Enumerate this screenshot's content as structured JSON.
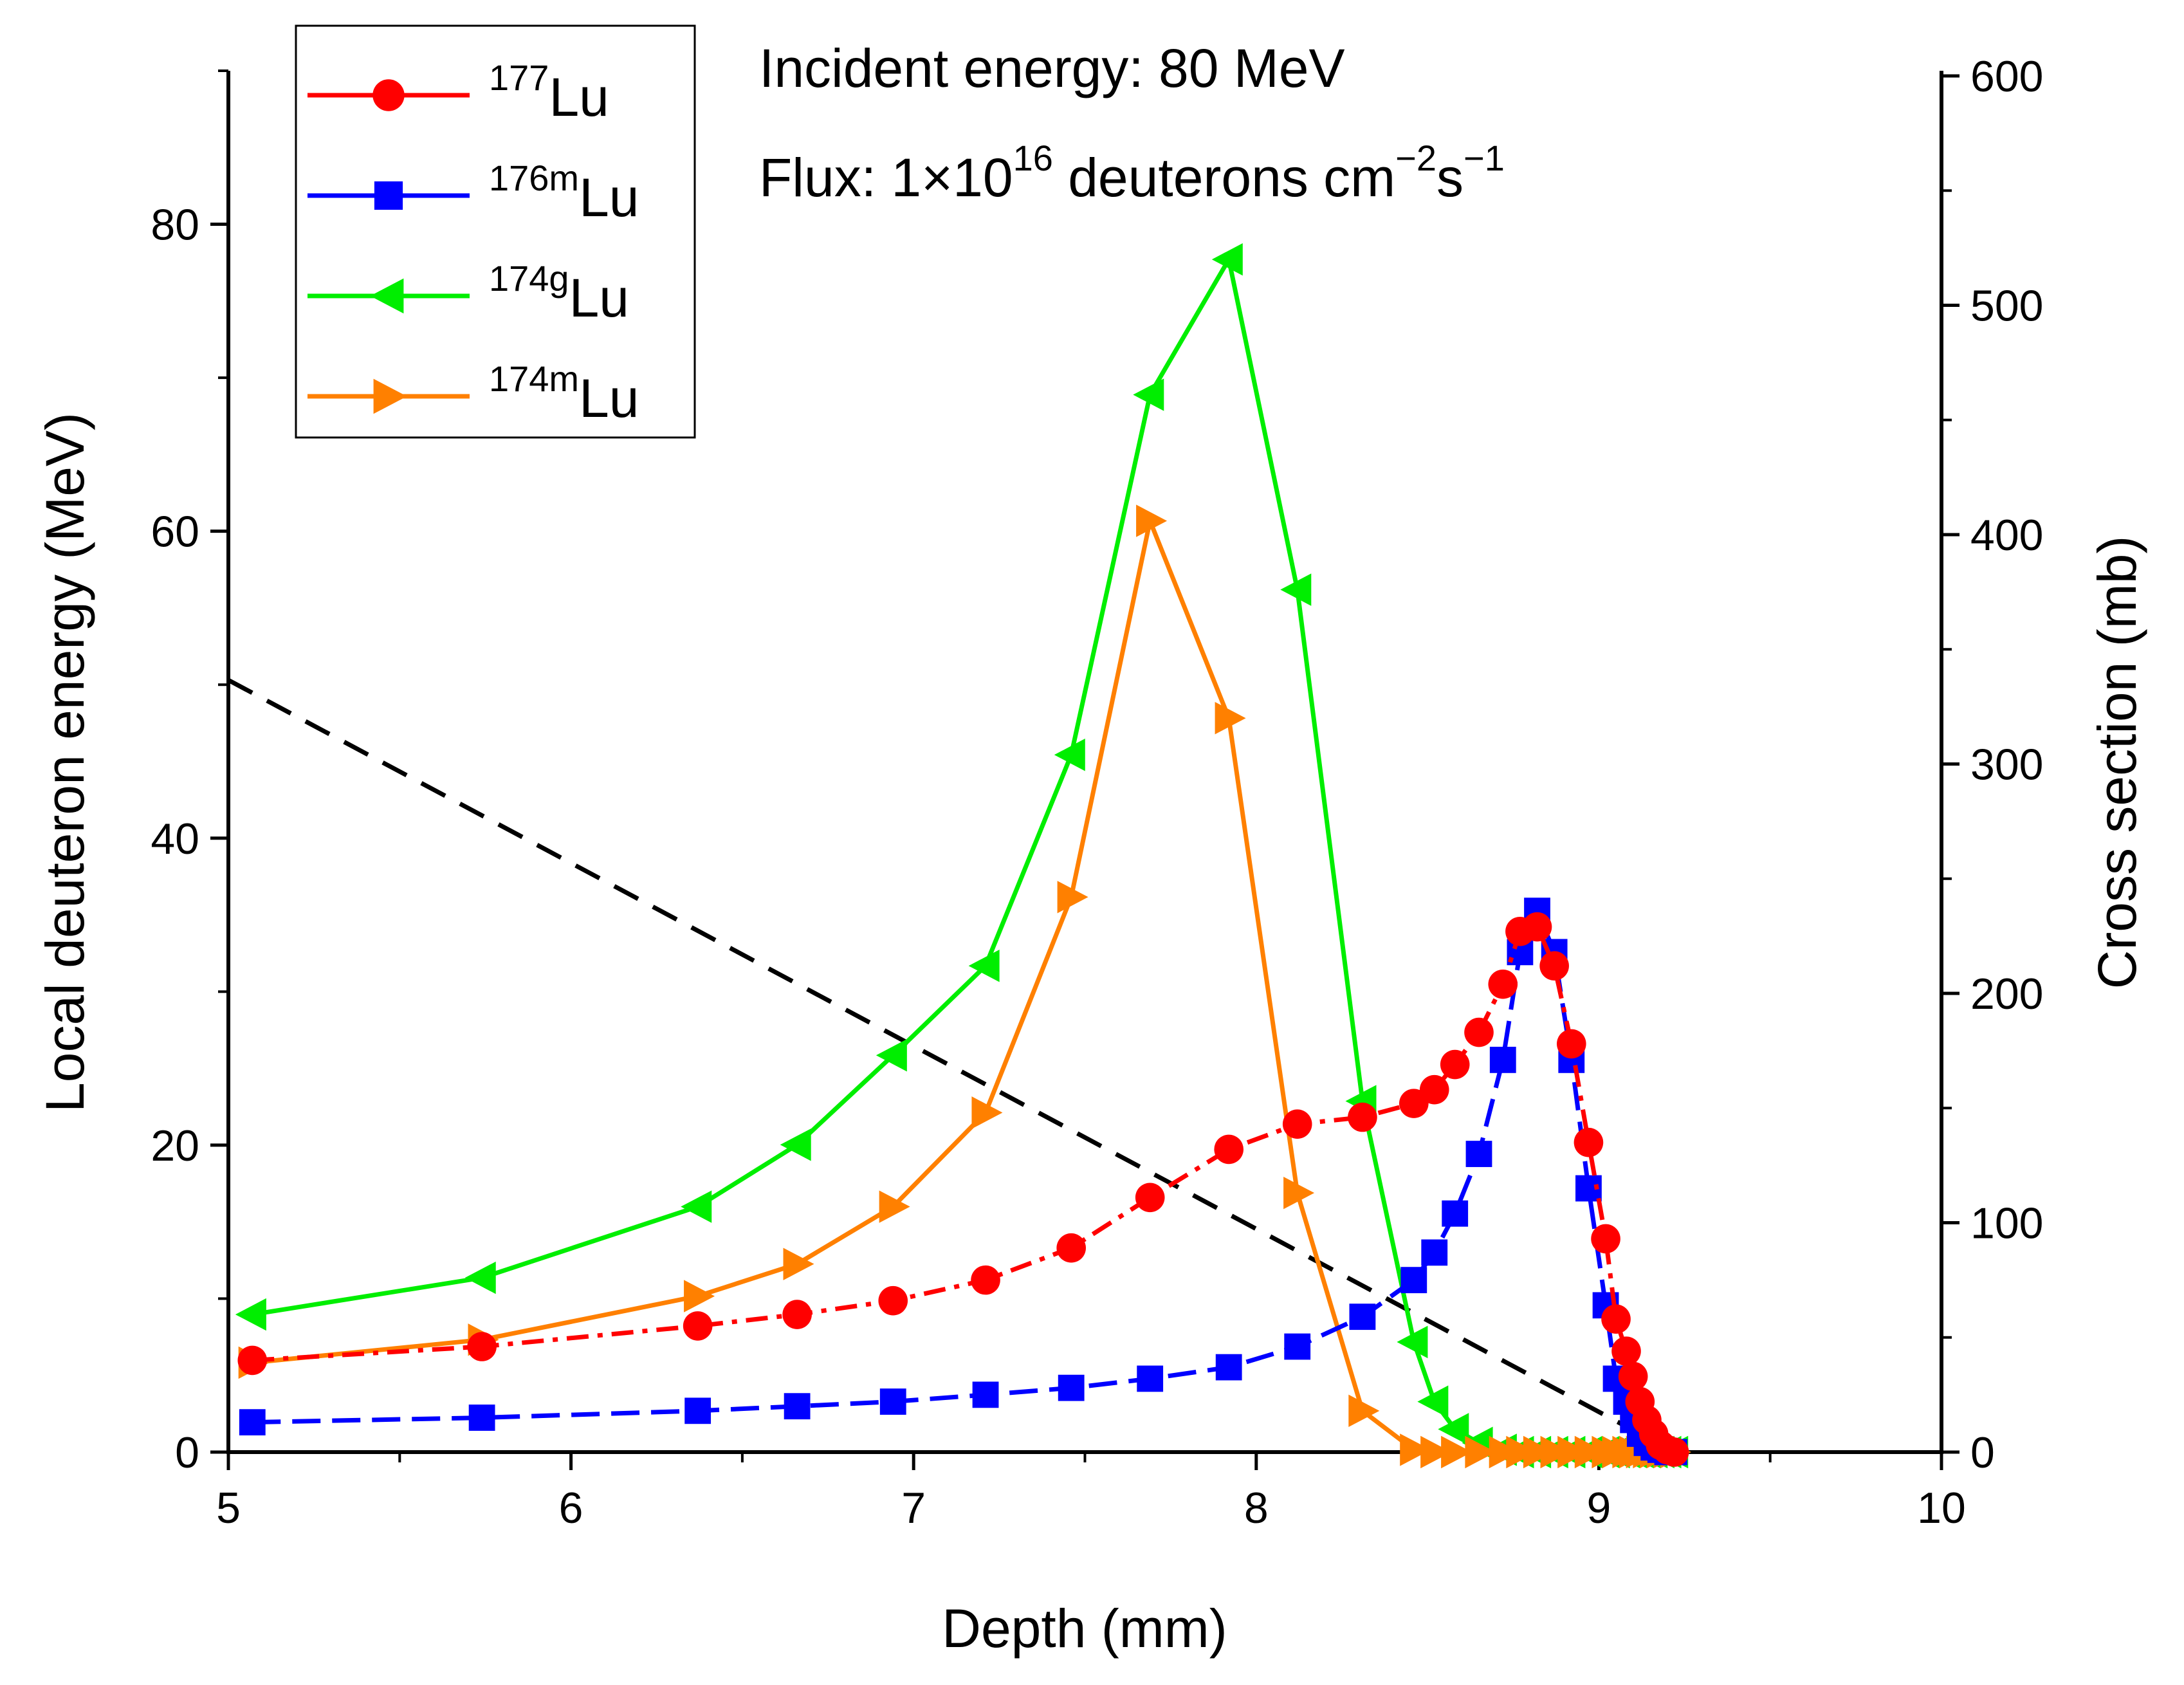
{
  "chart_data": {
    "type": "line",
    "xlabel": "Depth (mm)",
    "ylabel_left": "Local deuteron energy (MeV)",
    "ylabel_right": "Cross section (mb)",
    "xlim": [
      5,
      10
    ],
    "ylim_left": [
      0,
      90
    ],
    "ylim_right": [
      0,
      600
    ],
    "x_ticks": [
      "5",
      "6",
      "7",
      "8",
      "9",
      "10"
    ],
    "y_left_ticks": [
      "0",
      "20",
      "40",
      "60",
      "80"
    ],
    "y_right_ticks": [
      "0",
      "100",
      "200",
      "300",
      "400",
      "500",
      "600"
    ],
    "annotations": {
      "line1": "Incident energy: 80 MeV",
      "line2_prefix": "Flux: 1×10",
      "line2_exp": "16",
      "line2_mid": " deuterons cm",
      "line2_exp2": "−2",
      "line2_s": "s",
      "line2_exp3": "−1"
    },
    "energy_curve": {
      "name": "Local deuteron energy",
      "color": "#000000",
      "axis": "left",
      "x": [
        5.0,
        9.22
      ],
      "y": [
        50.3,
        0
      ]
    },
    "series": [
      {
        "name": "177Lu",
        "mass": "177",
        "element": "Lu",
        "color": "#ff0000",
        "marker": "circle",
        "axis": "right",
        "x": [
          5.07,
          5.74,
          6.37,
          6.66,
          6.94,
          7.21,
          7.46,
          7.69,
          7.92,
          8.12,
          8.31,
          8.46,
          8.52,
          8.58,
          8.65,
          8.72,
          8.77,
          8.82,
          8.87,
          8.92,
          8.97,
          9.02,
          9.05,
          9.08,
          9.1,
          9.12,
          9.14,
          9.16,
          9.18,
          9.2,
          9.22
        ],
        "y": [
          40,
          46,
          55,
          60,
          66,
          75,
          89,
          111,
          132,
          143,
          146,
          152,
          158,
          169,
          183,
          204,
          227,
          229,
          212,
          178,
          135,
          93,
          58,
          44,
          33,
          22,
          14,
          8,
          3,
          1,
          0
        ]
      },
      {
        "name": "176mLu",
        "mass": "176m",
        "element": "Lu",
        "color": "#0000ff",
        "marker": "square",
        "axis": "right",
        "x": [
          5.07,
          5.74,
          6.37,
          6.66,
          6.94,
          7.21,
          7.46,
          7.69,
          7.92,
          8.12,
          8.31,
          8.46,
          8.52,
          8.58,
          8.65,
          8.72,
          8.77,
          8.82,
          8.87,
          8.92,
          8.97,
          9.02,
          9.05,
          9.08,
          9.1,
          9.12,
          9.14,
          9.16,
          9.18,
          9.2,
          9.22
        ],
        "y": [
          13,
          15,
          18,
          20,
          22,
          25,
          28,
          32,
          37,
          46,
          59,
          75,
          87,
          104,
          130,
          171,
          218,
          236,
          218,
          171,
          115,
          64,
          32,
          22,
          14,
          8,
          4,
          2,
          1,
          0,
          0
        ]
      },
      {
        "name": "174gLu",
        "mass": "174g",
        "element": "Lu",
        "color": "#00ee00",
        "marker": "triangle-left",
        "axis": "right",
        "x": [
          5.07,
          5.74,
          6.37,
          6.66,
          6.94,
          7.21,
          7.46,
          7.69,
          7.92,
          8.12,
          8.31,
          8.46,
          8.52,
          8.58,
          8.65,
          8.72,
          8.77,
          8.82,
          8.87,
          8.92,
          8.97,
          9.02,
          9.05,
          9.08,
          9.1,
          9.12,
          9.14,
          9.16,
          9.18,
          9.2,
          9.22
        ],
        "y": [
          60,
          76,
          107,
          134,
          173,
          212,
          304,
          461,
          520,
          376,
          153,
          48,
          22,
          10,
          4,
          1,
          0,
          0,
          0,
          0,
          0,
          0,
          0,
          0,
          0,
          0,
          0,
          0,
          0,
          0,
          0
        ]
      },
      {
        "name": "174mLu",
        "mass": "174m",
        "element": "Lu",
        "color": "#ff8000",
        "marker": "triangle-right",
        "axis": "right",
        "x": [
          5.07,
          5.74,
          6.37,
          6.66,
          6.94,
          7.21,
          7.46,
          7.69,
          7.92,
          8.12,
          8.31,
          8.46,
          8.52,
          8.58,
          8.65,
          8.72,
          8.77,
          8.82,
          8.87,
          8.92,
          8.97,
          9.02,
          9.05,
          9.08,
          9.1,
          9.12,
          9.14,
          9.16,
          9.18,
          9.2,
          9.22
        ],
        "y": [
          39,
          49,
          68,
          82,
          107,
          148,
          242,
          406,
          320,
          113,
          18,
          1,
          0,
          0,
          0,
          0,
          0,
          0,
          0,
          0,
          0,
          0,
          0,
          0,
          0,
          0,
          0,
          0,
          0,
          0,
          0
        ]
      }
    ]
  }
}
